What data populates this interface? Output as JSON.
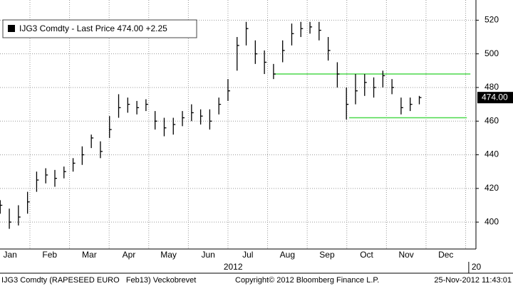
{
  "chart_data": {
    "type": "ohlc",
    "legend": {
      "name": "IJG3 Comdty - Last Price",
      "last_price": {
        "value": 474,
        "label": "474.00"
      },
      "change": "+2.25"
    },
    "x": [
      0.25,
      0.48,
      0.71,
      0.94,
      1.17,
      1.4,
      1.63,
      1.86,
      2.09,
      2.32,
      2.55,
      2.78,
      3.01,
      3.24,
      3.47,
      3.7,
      3.93,
      4.16,
      4.39,
      4.62,
      4.85,
      5.08,
      5.31,
      5.54,
      5.77,
      6.0,
      6.23,
      6.46,
      6.69,
      6.92,
      7.15,
      7.38,
      7.61,
      7.84,
      8.07,
      8.3,
      8.53,
      8.76,
      8.99,
      9.22,
      9.45,
      9.68,
      9.91,
      10.14,
      10.37,
      10.6,
      10.83
    ],
    "high": [
      413,
      408,
      410,
      418,
      430,
      432,
      431,
      433,
      438,
      445,
      452,
      448,
      463,
      476,
      474,
      472,
      473,
      466,
      462,
      462,
      466,
      470,
      467,
      467,
      474,
      485,
      510,
      519,
      508,
      502,
      494,
      508,
      518,
      519,
      519,
      519,
      510,
      495,
      480,
      488,
      488,
      486,
      490,
      485,
      474,
      474,
      475
    ],
    "low": [
      405,
      396,
      398,
      405,
      418,
      423,
      421,
      426,
      430,
      434,
      444,
      438,
      450,
      462,
      465,
      464,
      466,
      455,
      451,
      452,
      457,
      460,
      458,
      455,
      464,
      472,
      490,
      505,
      494,
      488,
      485,
      495,
      505,
      510,
      512,
      508,
      496,
      480,
      461,
      470,
      475,
      474,
      480,
      476,
      464,
      466,
      470
    ],
    "close": [
      410,
      400,
      403,
      412,
      425,
      428,
      426,
      430,
      435,
      440,
      450,
      442,
      455,
      468,
      470,
      468,
      470,
      460,
      456,
      458,
      462,
      465,
      463,
      460,
      470,
      478,
      505,
      515,
      500,
      495,
      488,
      502,
      512,
      515,
      516,
      514,
      502,
      488,
      470,
      478,
      483,
      480,
      487,
      480,
      468,
      470,
      474
    ],
    "color": "#000000",
    "xlim": [
      0.245,
      12.26
    ],
    "xticks": [
      {
        "value": 0.5,
        "label": "Jan"
      },
      {
        "value": 1.5,
        "label": "Feb"
      },
      {
        "value": 2.5,
        "label": "Mar"
      },
      {
        "value": 3.5,
        "label": "Apr"
      },
      {
        "value": 4.5,
        "label": "May"
      },
      {
        "value": 5.5,
        "label": "Jun"
      },
      {
        "value": 6.5,
        "label": "Jul"
      },
      {
        "value": 7.5,
        "label": "Aug"
      },
      {
        "value": 8.5,
        "label": "Sep"
      },
      {
        "value": 9.5,
        "label": "Oct"
      },
      {
        "value": 10.5,
        "label": "Nov"
      },
      {
        "value": 11.5,
        "label": "Dec"
      }
    ],
    "year_labels": [
      {
        "value": 6.13,
        "label": "2012"
      },
      {
        "value": 12.15,
        "label": "20"
      }
    ],
    "ylim": [
      384,
      532
    ],
    "yticks": [
      400,
      420,
      440,
      460,
      480,
      500,
      520
    ],
    "grid": true,
    "reference_lines": [
      {
        "y": 488,
        "x": [
          7.17,
          12.12
        ],
        "color": "#4cd94c"
      },
      {
        "y": 462,
        "x": [
          9.06,
          12.03
        ],
        "color": "#4cd94c"
      }
    ],
    "footer": [
      "IJG3 Comdty (RAPESEED EURO   Feb13) Veckobrevet",
      "Copyright© 2012 Bloomberg Finance L.P.",
      "25-Nov-2012 11:43:01"
    ]
  }
}
